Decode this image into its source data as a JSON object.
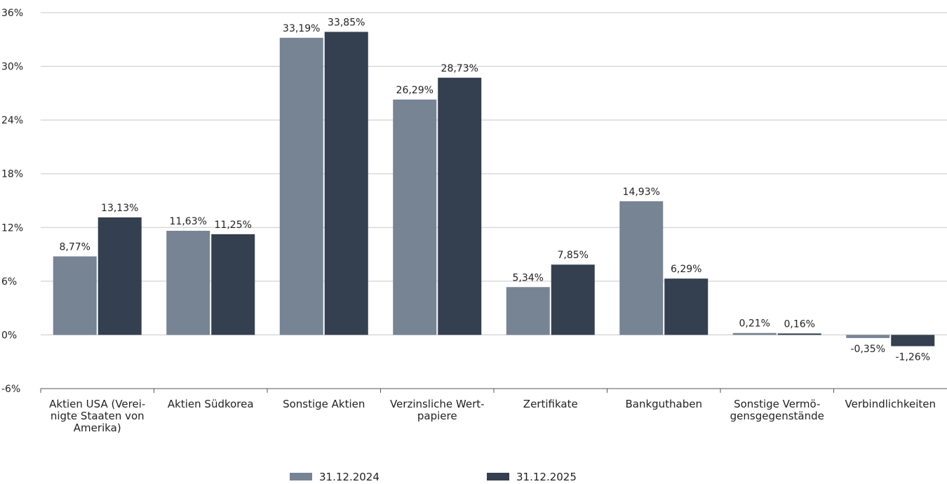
{
  "chart_data": {
    "type": "bar",
    "categories": [
      [
        "Aktien USA (Verei-",
        "nigte Staaten von",
        "Amerika)"
      ],
      [
        "Aktien Südkorea"
      ],
      [
        "Sonstige Aktien"
      ],
      [
        "Verzinsliche Wert-",
        "papiere"
      ],
      [
        "Zertifikate"
      ],
      [
        "Bankguthaben"
      ],
      [
        "Sonstige Vermö-",
        "gensgegenstände"
      ],
      [
        "Verbindlichkeiten"
      ]
    ],
    "series": [
      {
        "name": "31.12.2024",
        "color": "#778494",
        "values": [
          8.77,
          11.63,
          33.19,
          26.29,
          5.34,
          14.93,
          0.21,
          -0.35
        ],
        "labels": [
          "8,77%",
          "11,63%",
          "33,19%",
          "26,29%",
          "5,34%",
          "14,93%",
          "0,21%",
          "-0,35%"
        ]
      },
      {
        "name": "31.12.2025",
        "color": "#343f4f",
        "values": [
          13.13,
          11.25,
          33.85,
          28.73,
          7.85,
          6.29,
          0.16,
          -1.26
        ],
        "labels": [
          "13,13%",
          "11,25%",
          "33,85%",
          "28,73%",
          "7,85%",
          "6,29%",
          "0,16%",
          "-1,26%"
        ]
      }
    ],
    "ylim": [
      -6,
      36
    ],
    "yticks": [
      -6,
      0,
      6,
      12,
      18,
      24,
      30,
      36
    ],
    "ytick_labels": [
      "-6%",
      "0%",
      "6%",
      "12%",
      "18%",
      "24%",
      "30%",
      "36%"
    ],
    "grid": true,
    "legend_position": "bottom"
  }
}
